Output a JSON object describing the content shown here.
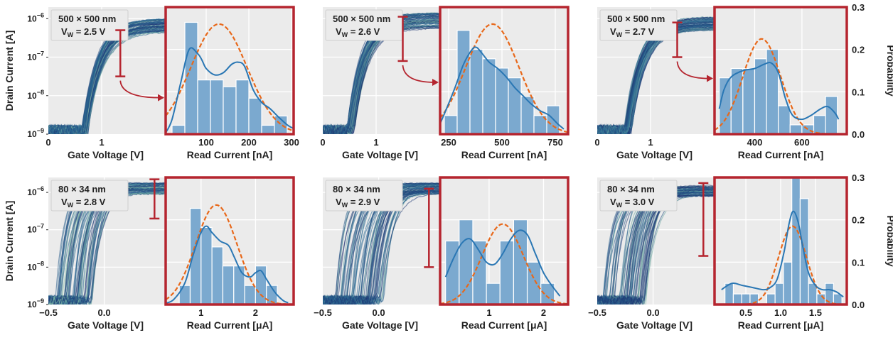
{
  "colors": {
    "plot_bg": "#ebebeb",
    "grid": "#ffffff",
    "bar_fill": "#7ba9cf",
    "bar_edge": "#ffffff",
    "kde": "#2a77b4",
    "normal_fit": "#e8681a",
    "frame_red": "#b5252f",
    "curve_light": "#8fc7a8",
    "curve_mid": "#2c6e96",
    "curve_dark": "#1b2f6e"
  },
  "shared_labels": {
    "drain_current_axis": "Drain Current [A]",
    "gate_voltage_axis": "Gate Voltage [V]",
    "probability_axis": "Probability",
    "probability_ticks": [
      "0.0",
      "0.1",
      "0.2",
      "0.3"
    ]
  },
  "chart_data": [
    {
      "type": "line",
      "row": 0,
      "col": 0,
      "box_title": "500 × 500 nm",
      "vw_label": "2.5 V",
      "xlabel": "Gate Voltage [V]",
      "ylabel": "Drain Current [A]",
      "xlim": [
        0,
        2.2
      ],
      "xticks": [
        0,
        1
      ],
      "xticklabels": [
        "0",
        "1"
      ],
      "ylim_log10": [
        -9,
        -5.7
      ],
      "yticks_log10": [
        -9,
        -8,
        -7,
        -6
      ],
      "curve_ranges": {
        "onset_v": [
          0.62,
          0.75
        ],
        "saturation_log10": [
          -6.35,
          -6.0
        ],
        "steepness": [
          3.2,
          4.2
        ]
      },
      "read_range_log10": [
        -7.5,
        -6.3
      ],
      "read_bar_x": 1.35,
      "histogram": {
        "xlabel": "Read Current [nA]",
        "xlim": [
          5,
          305
        ],
        "xticks": [
          100,
          200,
          300
        ],
        "xticklabels": [
          "100",
          "200",
          "300"
        ],
        "ylim": [
          0,
          0.3
        ],
        "bin_edges": [
          20,
          50,
          80,
          110,
          140,
          170,
          200,
          230,
          260,
          290
        ],
        "probabilities": [
          0.021,
          0.264,
          0.128,
          0.128,
          0.112,
          0.128,
          0.085,
          0.021,
          0.043
        ],
        "kde": {
          "x": [
            5,
            20,
            40,
            60,
            80,
            90,
            100,
            120,
            140,
            160,
            175,
            190,
            210,
            230,
            250,
            270,
            290,
            305
          ],
          "y": [
            0.003,
            0.035,
            0.12,
            0.2,
            0.19,
            0.175,
            0.155,
            0.14,
            0.145,
            0.165,
            0.17,
            0.16,
            0.105,
            0.075,
            0.06,
            0.04,
            0.022,
            0.013
          ]
        },
        "normal_fit": {
          "mean": 130,
          "sd": 66,
          "peak": 0.26
        }
      }
    },
    {
      "type": "line",
      "row": 0,
      "col": 1,
      "box_title": "500 × 500 nm",
      "vw_label": "2.6 V",
      "xlabel": "Gate Voltage [V]",
      "ylabel": "",
      "xlim": [
        0,
        2.2
      ],
      "xticks": [
        0,
        1
      ],
      "xticklabels": [
        "0",
        "1"
      ],
      "ylim_log10": [
        -9,
        -5.7
      ],
      "yticks_log10": [
        -9,
        -8,
        -7,
        -6
      ],
      "curve_ranges": {
        "onset_v": [
          0.45,
          0.6
        ],
        "saturation_log10": [
          -6.25,
          -5.85
        ],
        "steepness": [
          3.4,
          4.4
        ]
      },
      "read_range_log10": [
        -7.1,
        -5.95
      ],
      "read_bar_x": 1.5,
      "histogram": {
        "xlabel": "Read Current [nA]",
        "xlim": [
          210,
          810
        ],
        "xticks": [
          250,
          500,
          750
        ],
        "xticklabels": [
          "250",
          "500",
          "750"
        ],
        "ylim": [
          0,
          0.3
        ],
        "bin_edges": [
          230,
          290,
          350,
          410,
          470,
          530,
          590,
          650,
          710,
          770
        ],
        "probabilities": [
          0.044,
          0.245,
          0.2,
          0.178,
          0.156,
          0.133,
          0.089,
          0.044,
          0.067
        ],
        "kde": {
          "x": [
            210,
            240,
            280,
            320,
            360,
            380,
            400,
            440,
            480,
            520,
            560,
            600,
            640,
            680,
            720,
            760,
            790
          ],
          "y": [
            0.025,
            0.06,
            0.11,
            0.165,
            0.2,
            0.205,
            0.195,
            0.17,
            0.155,
            0.135,
            0.11,
            0.09,
            0.07,
            0.055,
            0.045,
            0.025,
            0.012
          ]
        },
        "normal_fit": {
          "mean": 455,
          "sd": 125,
          "peak": 0.26
        }
      }
    },
    {
      "type": "line",
      "row": 0,
      "col": 2,
      "box_title": "500 × 500 nm",
      "vw_label": "2.7 V",
      "xlabel": "Gate Voltage [V]",
      "ylabel": "",
      "xlim": [
        0,
        2.2
      ],
      "xticks": [
        0,
        1
      ],
      "xticklabels": [
        "0",
        "1"
      ],
      "ylim_log10": [
        -9,
        -5.7
      ],
      "yticks_log10": [
        -9,
        -8,
        -7,
        -6
      ],
      "curve_ranges": {
        "onset_v": [
          0.5,
          0.65
        ],
        "saturation_log10": [
          -6.3,
          -5.95
        ],
        "steepness": [
          3.3,
          4.3
        ]
      },
      "read_range_log10": [
        -7.0,
        -6.1
      ],
      "read_bar_x": 1.5,
      "histogram": {
        "xlabel": "Read Current [nA]",
        "xlim": [
          230,
          790
        ],
        "xticks": [
          400,
          600
        ],
        "xticklabels": [
          "400",
          "600"
        ],
        "ylim": [
          0,
          0.3
        ],
        "bin_edges": [
          250,
          300,
          350,
          400,
          450,
          500,
          550,
          600,
          650,
          700,
          750
        ],
        "probabilities": [
          0.133,
          0.155,
          0.155,
          0.178,
          0.2,
          0.067,
          0.022,
          0.022,
          0.044,
          0.089
        ],
        "kde": {
          "x": [
            250,
            270,
            300,
            350,
            400,
            440,
            470,
            500,
            530,
            560,
            600,
            640,
            680,
            710,
            740,
            755
          ],
          "y": [
            0.06,
            0.105,
            0.135,
            0.15,
            0.155,
            0.165,
            0.168,
            0.145,
            0.085,
            0.045,
            0.035,
            0.045,
            0.06,
            0.065,
            0.05,
            0.035
          ]
        },
        "normal_fit": {
          "mean": 430,
          "sd": 80,
          "peak": 0.225
        }
      }
    },
    {
      "type": "line",
      "row": 1,
      "col": 0,
      "box_title": "80 × 34 nm",
      "vw_label": "2.8 V",
      "xlabel": "Gate Voltage [V]",
      "ylabel": "Drain Current [A]",
      "xlim": [
        -0.5,
        0.55
      ],
      "xticks": [
        -0.5,
        0.0
      ],
      "xticklabels": [
        "−0.5",
        "0.0"
      ],
      "ylim_log10": [
        -9,
        -5.6
      ],
      "yticks_log10": [
        -9,
        -8,
        -7,
        -6
      ],
      "curve_ranges": {
        "onset_v": [
          -0.45,
          -0.1
        ],
        "saturation_log10": [
          -6.05,
          -5.75
        ],
        "steepness": [
          4.0,
          7.0
        ]
      },
      "read_range_log10": [
        -6.7,
        -5.65
      ],
      "read_bar_x": 0.45,
      "histogram": {
        "xlabel": "Read Current [μA]",
        "xlim": [
          0.35,
          2.7
        ],
        "xticks": [
          1,
          2
        ],
        "xticklabels": [
          "1",
          "2"
        ],
        "ylim": [
          0,
          0.3
        ],
        "bin_edges": [
          0.6,
          0.8,
          1.0,
          1.2,
          1.4,
          1.6,
          1.8,
          2.0,
          2.2,
          2.4
        ],
        "probabilities": [
          0.045,
          0.227,
          0.182,
          0.136,
          0.091,
          0.091,
          0.045,
          0.091,
          0.045
        ],
        "kde": {
          "x": [
            0.35,
            0.5,
            0.7,
            0.85,
            1.0,
            1.1,
            1.2,
            1.35,
            1.5,
            1.6,
            1.75,
            1.9,
            2.0,
            2.1,
            2.2,
            2.35,
            2.5,
            2.6
          ],
          "y": [
            0.003,
            0.012,
            0.05,
            0.115,
            0.17,
            0.185,
            0.17,
            0.15,
            0.14,
            0.115,
            0.075,
            0.065,
            0.075,
            0.08,
            0.06,
            0.03,
            0.01,
            0.004
          ]
        },
        "normal_fit": {
          "mean": 1.28,
          "sd": 0.38,
          "peak": 0.235
        }
      }
    },
    {
      "type": "line",
      "row": 1,
      "col": 1,
      "box_title": "80 × 34 nm",
      "vw_label": "2.9 V",
      "xlabel": "Gate Voltage [V]",
      "ylabel": "",
      "xlim": [
        -0.5,
        0.55
      ],
      "xticks": [
        -0.5,
        0.0
      ],
      "xticklabels": [
        "−0.5",
        "0.0"
      ],
      "ylim_log10": [
        -9,
        -5.6
      ],
      "yticks_log10": [
        -9,
        -8,
        -7,
        -6
      ],
      "curve_ranges": {
        "onset_v": [
          -0.4,
          0.05
        ],
        "saturation_log10": [
          -6.05,
          -5.75
        ],
        "steepness": [
          3.8,
          6.5
        ]
      },
      "read_range_log10": [
        -8.0,
        -5.9
      ],
      "read_bar_x": 0.45,
      "histogram": {
        "xlabel": "Read Current [μA]",
        "xlim": [
          0.1,
          2.45
        ],
        "xticks": [
          1,
          2
        ],
        "xticklabels": [
          "1",
          "2"
        ],
        "ylim": [
          0,
          0.3
        ],
        "bin_edges": [
          0.2,
          0.45,
          0.7,
          0.95,
          1.2,
          1.45,
          1.7,
          1.95,
          2.2
        ],
        "probabilities": [
          0.15,
          0.2,
          0.15,
          0.05,
          0.15,
          0.2,
          0.1,
          0.05
        ],
        "kde": {
          "x": [
            0.2,
            0.35,
            0.5,
            0.65,
            0.8,
            0.95,
            1.1,
            1.25,
            1.4,
            1.55,
            1.7,
            1.85,
            2.0,
            2.15,
            2.3
          ],
          "y": [
            0.065,
            0.11,
            0.145,
            0.155,
            0.13,
            0.1,
            0.095,
            0.12,
            0.155,
            0.175,
            0.165,
            0.12,
            0.075,
            0.045,
            0.02
          ]
        },
        "normal_fit": {
          "mean": 1.25,
          "sd": 0.38,
          "peak": 0.19
        }
      }
    },
    {
      "type": "line",
      "row": 1,
      "col": 2,
      "box_title": "80 × 34 nm",
      "vw_label": "3.0 V",
      "xlabel": "Gate Voltage [V]",
      "ylabel": "",
      "xlim": [
        -0.5,
        0.55
      ],
      "xticks": [
        -0.5,
        0.0
      ],
      "xticklabels": [
        "−0.5",
        "0.0"
      ],
      "ylim_log10": [
        -9,
        -5.6
      ],
      "yticks_log10": [
        -9,
        -8,
        -7,
        -6
      ],
      "curve_ranges": {
        "onset_v": [
          -0.45,
          -0.05
        ],
        "saturation_log10": [
          -6.1,
          -5.8
        ],
        "steepness": [
          4.0,
          7.0
        ]
      },
      "read_range_log10": [
        -7.7,
        -5.75
      ],
      "read_bar_x": 0.45,
      "histogram": {
        "xlabel": "Read Current [μA]",
        "xlim": [
          0.05,
          1.95
        ],
        "xticks": [
          0.5,
          1.0,
          1.5
        ],
        "xticklabels": [
          "0.5",
          "1.0",
          "1.5"
        ],
        "ylim": [
          0,
          0.3
        ],
        "bin_edges": [
          0.2,
          0.32,
          0.44,
          0.56,
          0.68,
          0.8,
          0.92,
          1.04,
          1.16,
          1.28,
          1.4,
          1.52,
          1.64,
          1.76,
          1.88
        ],
        "probabilities": [
          0.05,
          0.025,
          0.025,
          0.025,
          0.0,
          0.025,
          0.05,
          0.1,
          0.3,
          0.25,
          0.05,
          0.025,
          0.05,
          0.025
        ],
        "kde": {
          "x": [
            0.15,
            0.3,
            0.45,
            0.6,
            0.75,
            0.85,
            0.95,
            1.05,
            1.12,
            1.18,
            1.25,
            1.32,
            1.4,
            1.5,
            1.6,
            1.7,
            1.8,
            1.9
          ],
          "y": [
            0.035,
            0.05,
            0.045,
            0.04,
            0.035,
            0.04,
            0.06,
            0.125,
            0.19,
            0.22,
            0.195,
            0.135,
            0.075,
            0.045,
            0.035,
            0.035,
            0.03,
            0.018
          ]
        },
        "normal_fit": {
          "mean": 1.17,
          "sd": 0.2,
          "peak": 0.185
        }
      }
    }
  ]
}
